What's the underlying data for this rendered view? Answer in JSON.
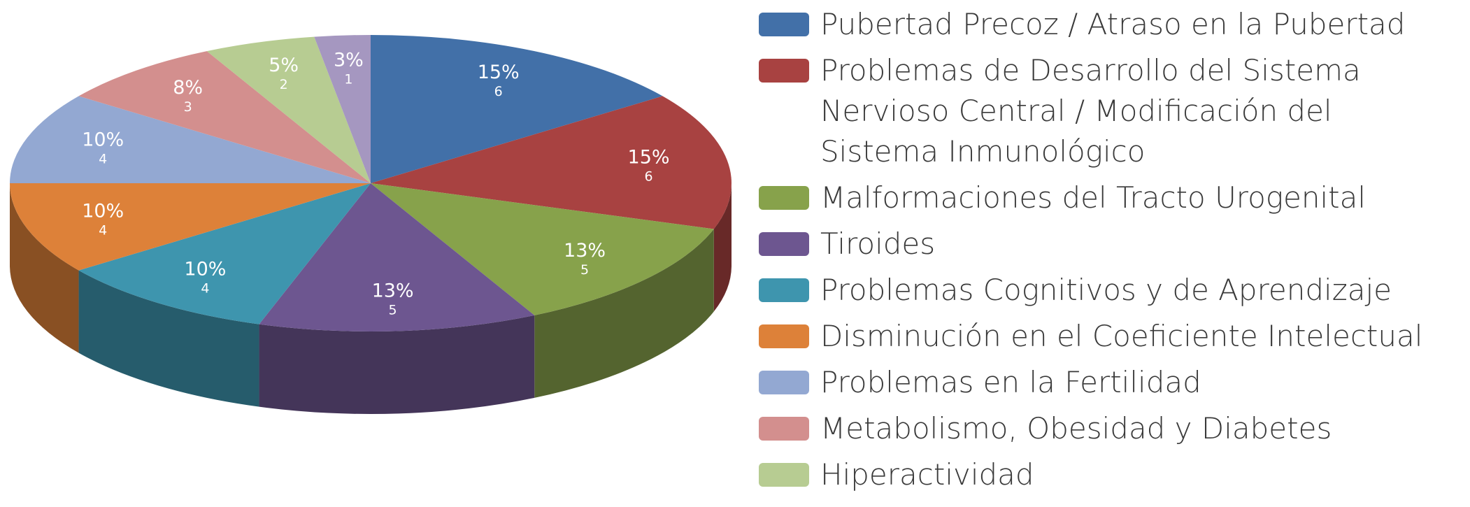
{
  "chart_data": {
    "type": "pie3d",
    "categories": [
      "Pubertad Precoz / Atraso en la Pubertad",
      "Problemas de Desarrollo del Sistema Nervioso Central / Modificación del Sistema Inmunológico",
      "Malformaciones del Tracto Urogenital",
      "Tiroides",
      "Problemas Cognitivos y de Aprendizaje",
      "Disminución en el Coeficiente Intelectual",
      "Problemas en la Fertilidad",
      "Metabolismo, Obesidad y Diabetes",
      "Hiperactividad",
      null
    ],
    "values": [
      6,
      6,
      5,
      5,
      4,
      4,
      4,
      3,
      2,
      1
    ],
    "percent_labels": [
      "15%",
      "15%",
      "13%",
      "13%",
      "10%",
      "10%",
      "10%",
      "8%",
      "5%",
      "3%"
    ],
    "colors": [
      "#4270a8",
      "#a84241",
      "#87a24b",
      "#6d5690",
      "#3e95ae",
      "#dd8139",
      "#93a8d2",
      "#d38f8e",
      "#b7cc92",
      "#a597c0"
    ],
    "legend": "right"
  }
}
